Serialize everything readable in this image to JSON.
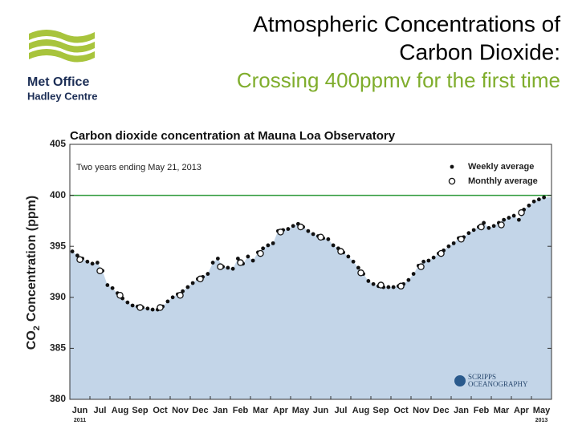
{
  "slide": {
    "title_lines": [
      "Atmospheric Concentrations of",
      "Carbon Dioxide:"
    ],
    "subtitle": "Crossing 400ppmv for the first time",
    "logo_lines": [
      "Met Office",
      "Hadley Centre"
    ]
  },
  "chart_data": {
    "type": "scatter",
    "title": "Carbon dioxide concentration at Mauna Loa Observatory",
    "annotation": "Two years ending May 21, 2013",
    "y_label": [
      "CO",
      "2",
      "Concentration (ppm)"
    ],
    "source_logo": [
      "SCRIPPS",
      "OCEANOGRAPHY"
    ],
    "categories": [
      "Jun",
      "Jul",
      "Aug",
      "Sep",
      "Oct",
      "Nov",
      "Dec",
      "Jan",
      "Feb",
      "Mar",
      "Apr",
      "May",
      "Jun",
      "Jul",
      "Aug",
      "Sep",
      "Oct",
      "Nov",
      "Dec",
      "Jan",
      "Feb",
      "Mar",
      "Apr",
      "May"
    ],
    "category_years": [
      "2011",
      null,
      null,
      null,
      null,
      null,
      null,
      null,
      null,
      null,
      null,
      null,
      null,
      null,
      null,
      null,
      null,
      null,
      null,
      null,
      null,
      null,
      null,
      "2013"
    ],
    "ylim": [
      380,
      405
    ],
    "yticks": [
      380,
      385,
      390,
      395,
      400,
      405
    ],
    "reference_line": {
      "value": 400,
      "color": "#2e9a3a"
    },
    "area_color": "#c3d5e8",
    "legend": "top-right",
    "series": [
      {
        "name": "Weekly average",
        "color": "#111111",
        "marker": "dot",
        "values": [
          394.5,
          394.1,
          393.8,
          393.5,
          393.3,
          393.4,
          392.6,
          391.2,
          390.9,
          390.4,
          389.9,
          389.5,
          389.2,
          389.1,
          389.0,
          388.9,
          388.8,
          388.8,
          389.1,
          389.6,
          390.0,
          390.3,
          390.6,
          391.0,
          391.4,
          391.8,
          392.0,
          392.3,
          393.4,
          393.8,
          393.0,
          392.9,
          392.8,
          393.8,
          393.3,
          394.0,
          393.6,
          394.4,
          394.8,
          395.1,
          395.3,
          396.5,
          396.6,
          396.7,
          397.0,
          397.2,
          396.9,
          396.5,
          396.2,
          396.0,
          395.8,
          395.7,
          395.1,
          394.8,
          394.4,
          394.0,
          393.5,
          392.9,
          392.3,
          391.6,
          391.3,
          391.1,
          391.0,
          391.0,
          391.0,
          391.1,
          391.3,
          391.7,
          392.3,
          393.1,
          393.5,
          393.6,
          393.9,
          394.3,
          394.6,
          395.0,
          395.3,
          395.8,
          395.9,
          396.3,
          396.6,
          396.9,
          397.3,
          396.8,
          397.0,
          397.3,
          397.6,
          397.8,
          398.0,
          397.6,
          398.6,
          399.0,
          399.4,
          399.6,
          399.8
        ]
      },
      {
        "name": "Monthly average",
        "color": "#111111",
        "marker": "circle",
        "values": [
          393.7,
          392.6,
          390.2,
          389.0,
          389.0,
          390.2,
          391.8,
          393.0,
          393.4,
          394.3,
          396.4,
          396.9,
          395.9,
          394.5,
          392.4,
          391.2,
          391.1,
          393.0,
          394.3,
          395.7,
          396.9,
          397.1,
          398.3,
          null
        ]
      }
    ]
  }
}
